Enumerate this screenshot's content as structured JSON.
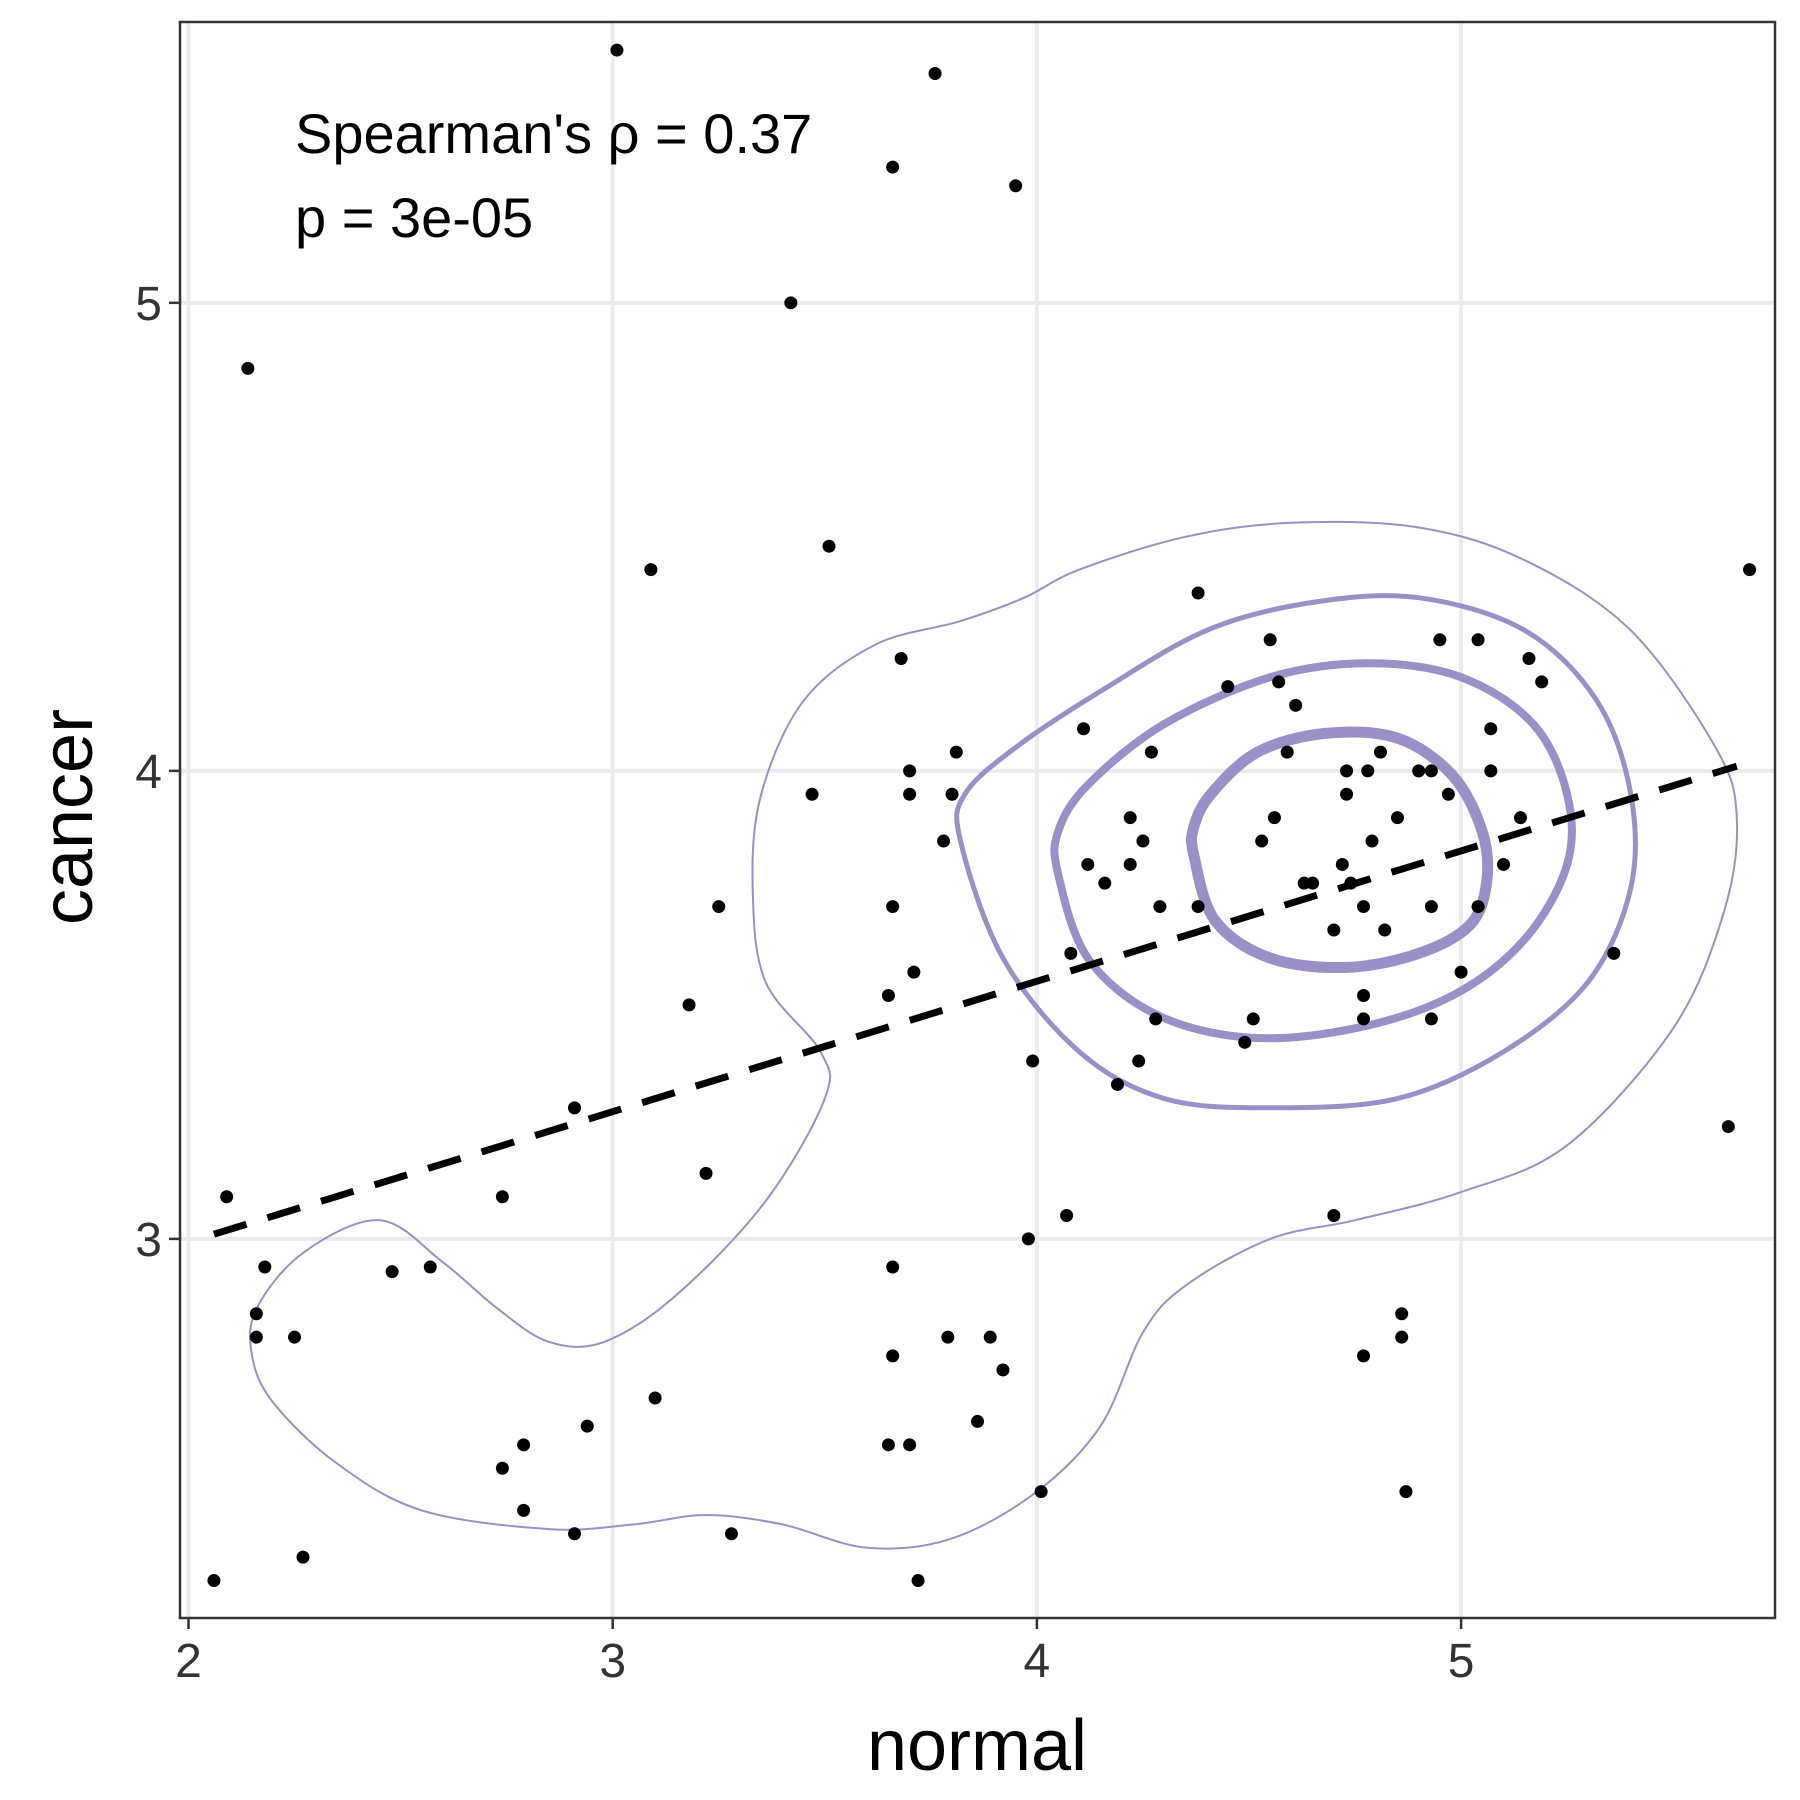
{
  "chart_data": {
    "type": "scatter",
    "title": "",
    "xlabel": "normal",
    "ylabel": "cancer",
    "xlim": [
      1.98,
      5.74
    ],
    "ylim": [
      2.19,
      5.6
    ],
    "x_ticks": [
      {
        "value": 2,
        "label": "2"
      },
      {
        "value": 3,
        "label": "3"
      },
      {
        "value": 4,
        "label": "4"
      },
      {
        "value": 5,
        "label": "5"
      }
    ],
    "y_ticks": [
      {
        "value": 3,
        "label": "3"
      },
      {
        "value": 4,
        "label": "4"
      },
      {
        "value": 5,
        "label": "5"
      }
    ],
    "grid": true,
    "legend": "none",
    "annotations": [
      "Spearman's ρ = 0.37",
      "p = 3e-05"
    ],
    "colors": {
      "points": "#000000",
      "contour": "#9b8fc8",
      "regression": "#000000",
      "grid": "#ebebeb",
      "panel_border": "#333333"
    },
    "regression_line": {
      "style": "dashed",
      "x": [
        2.06,
        5.65
      ],
      "y": [
        3.01,
        4.01
      ]
    },
    "points": [
      [
        2.06,
        2.27
      ],
      [
        2.09,
        3.09
      ],
      [
        2.14,
        4.86
      ],
      [
        2.16,
        2.84
      ],
      [
        2.16,
        2.79
      ],
      [
        2.18,
        2.94
      ],
      [
        2.25,
        2.79
      ],
      [
        2.27,
        2.32
      ],
      [
        2.48,
        2.93
      ],
      [
        2.57,
        2.94
      ],
      [
        2.74,
        3.09
      ],
      [
        2.74,
        2.51
      ],
      [
        2.79,
        2.56
      ],
      [
        2.79,
        2.42
      ],
      [
        2.91,
        2.37
      ],
      [
        2.91,
        3.28
      ],
      [
        2.94,
        2.6
      ],
      [
        3.01,
        5.54
      ],
      [
        3.09,
        4.43
      ],
      [
        3.1,
        2.66
      ],
      [
        3.18,
        3.5
      ],
      [
        3.22,
        3.14
      ],
      [
        3.25,
        3.71
      ],
      [
        3.28,
        2.37
      ],
      [
        3.42,
        5.0
      ],
      [
        3.47,
        3.95
      ],
      [
        3.51,
        4.48
      ],
      [
        3.65,
        3.52
      ],
      [
        3.65,
        2.56
      ],
      [
        3.66,
        3.71
      ],
      [
        3.66,
        5.29
      ],
      [
        3.66,
        2.94
      ],
      [
        3.66,
        2.75
      ],
      [
        3.68,
        4.24
      ],
      [
        3.7,
        4.0
      ],
      [
        3.7,
        3.95
      ],
      [
        3.7,
        2.56
      ],
      [
        3.71,
        3.57
      ],
      [
        3.72,
        2.27
      ],
      [
        3.76,
        5.49
      ],
      [
        3.78,
        3.85
      ],
      [
        3.79,
        2.79
      ],
      [
        3.8,
        3.95
      ],
      [
        3.81,
        4.04
      ],
      [
        3.86,
        2.61
      ],
      [
        3.89,
        2.79
      ],
      [
        3.92,
        2.72
      ],
      [
        3.95,
        5.25
      ],
      [
        3.98,
        3.0
      ],
      [
        3.99,
        3.38
      ],
      [
        4.01,
        2.46
      ],
      [
        4.07,
        3.05
      ],
      [
        4.08,
        3.61
      ],
      [
        4.11,
        4.09
      ],
      [
        4.12,
        3.8
      ],
      [
        4.16,
        3.76
      ],
      [
        4.19,
        3.33
      ],
      [
        4.22,
        3.8
      ],
      [
        4.22,
        3.9
      ],
      [
        4.24,
        3.38
      ],
      [
        4.25,
        3.85
      ],
      [
        4.27,
        4.04
      ],
      [
        4.28,
        3.47
      ],
      [
        4.29,
        3.71
      ],
      [
        4.38,
        3.71
      ],
      [
        4.38,
        4.38
      ],
      [
        4.45,
        4.18
      ],
      [
        4.49,
        3.42
      ],
      [
        4.51,
        3.47
      ],
      [
        4.53,
        3.85
      ],
      [
        4.55,
        4.28
      ],
      [
        4.56,
        3.9
      ],
      [
        4.57,
        4.19
      ],
      [
        4.59,
        4.04
      ],
      [
        4.61,
        4.14
      ],
      [
        4.63,
        3.76
      ],
      [
        4.65,
        3.76
      ],
      [
        4.7,
        3.66
      ],
      [
        4.7,
        3.05
      ],
      [
        4.72,
        3.8
      ],
      [
        4.73,
        3.95
      ],
      [
        4.73,
        4.0
      ],
      [
        4.74,
        3.76
      ],
      [
        4.77,
        3.71
      ],
      [
        4.77,
        2.75
      ],
      [
        4.77,
        3.47
      ],
      [
        4.77,
        3.52
      ],
      [
        4.78,
        4.0
      ],
      [
        4.79,
        3.85
      ],
      [
        4.81,
        4.04
      ],
      [
        4.82,
        3.66
      ],
      [
        4.85,
        3.9
      ],
      [
        4.86,
        2.79
      ],
      [
        4.86,
        2.84
      ],
      [
        4.87,
        2.46
      ],
      [
        4.9,
        4.0
      ],
      [
        4.93,
        3.71
      ],
      [
        4.93,
        3.47
      ],
      [
        4.93,
        4.0
      ],
      [
        4.95,
        4.28
      ],
      [
        4.97,
        3.95
      ],
      [
        5.0,
        3.57
      ],
      [
        5.04,
        4.28
      ],
      [
        5.04,
        3.71
      ],
      [
        5.07,
        4.09
      ],
      [
        5.07,
        4.0
      ],
      [
        5.1,
        3.8
      ],
      [
        5.14,
        3.9
      ],
      [
        5.16,
        4.24
      ],
      [
        5.19,
        4.19
      ],
      [
        5.36,
        3.61
      ],
      [
        5.63,
        3.24
      ],
      [
        5.68,
        4.43
      ]
    ],
    "contours": [
      {
        "level": 1,
        "stroke_width": 2,
        "closed": true,
        "points": [
          [
            2.16,
            2.85
          ],
          [
            2.27,
            2.97
          ],
          [
            2.45,
            3.04
          ],
          [
            2.6,
            2.95
          ],
          [
            2.73,
            2.85
          ],
          [
            2.85,
            2.78
          ],
          [
            2.98,
            2.78
          ],
          [
            3.15,
            2.88
          ],
          [
            3.36,
            3.08
          ],
          [
            3.5,
            3.3
          ],
          [
            3.49,
            3.4
          ],
          [
            3.36,
            3.55
          ],
          [
            3.33,
            3.75
          ],
          [
            3.35,
            3.95
          ],
          [
            3.45,
            4.15
          ],
          [
            3.62,
            4.27
          ],
          [
            3.82,
            4.32
          ],
          [
            3.97,
            4.37
          ],
          [
            4.1,
            4.43
          ],
          [
            4.35,
            4.5
          ],
          [
            4.6,
            4.53
          ],
          [
            4.9,
            4.52
          ],
          [
            5.15,
            4.45
          ],
          [
            5.4,
            4.3
          ],
          [
            5.6,
            4.05
          ],
          [
            5.65,
            3.9
          ],
          [
            5.62,
            3.7
          ],
          [
            5.5,
            3.45
          ],
          [
            5.25,
            3.2
          ],
          [
            5.0,
            3.1
          ],
          [
            4.75,
            3.04
          ],
          [
            4.55,
            3.0
          ],
          [
            4.35,
            2.9
          ],
          [
            4.25,
            2.8
          ],
          [
            4.15,
            2.6
          ],
          [
            4.0,
            2.46
          ],
          [
            3.8,
            2.36
          ],
          [
            3.6,
            2.34
          ],
          [
            3.4,
            2.39
          ],
          [
            3.22,
            2.41
          ],
          [
            3.05,
            2.39
          ],
          [
            2.85,
            2.38
          ],
          [
            2.55,
            2.42
          ],
          [
            2.35,
            2.52
          ],
          [
            2.2,
            2.65
          ],
          [
            2.15,
            2.75
          ]
        ]
      },
      {
        "level": 2,
        "stroke_width": 5,
        "closed": true,
        "points": [
          [
            3.82,
            3.85
          ],
          [
            3.92,
            3.6
          ],
          [
            4.1,
            3.4
          ],
          [
            4.3,
            3.3
          ],
          [
            4.55,
            3.28
          ],
          [
            4.85,
            3.3
          ],
          [
            5.1,
            3.4
          ],
          [
            5.3,
            3.55
          ],
          [
            5.4,
            3.75
          ],
          [
            5.4,
            3.95
          ],
          [
            5.32,
            4.15
          ],
          [
            5.15,
            4.3
          ],
          [
            4.9,
            4.37
          ],
          [
            4.65,
            4.36
          ],
          [
            4.4,
            4.3
          ],
          [
            4.15,
            4.17
          ],
          [
            3.95,
            4.05
          ],
          [
            3.83,
            3.95
          ]
        ]
      },
      {
        "level": 3,
        "stroke_width": 8,
        "closed": true,
        "points": [
          [
            4.05,
            3.78
          ],
          [
            4.12,
            3.6
          ],
          [
            4.28,
            3.48
          ],
          [
            4.5,
            3.43
          ],
          [
            4.75,
            3.45
          ],
          [
            4.98,
            3.52
          ],
          [
            5.15,
            3.64
          ],
          [
            5.25,
            3.8
          ],
          [
            5.25,
            3.95
          ],
          [
            5.17,
            4.1
          ],
          [
            5.0,
            4.2
          ],
          [
            4.78,
            4.23
          ],
          [
            4.55,
            4.2
          ],
          [
            4.3,
            4.1
          ],
          [
            4.12,
            3.97
          ],
          [
            4.05,
            3.87
          ]
        ]
      },
      {
        "level": 4,
        "stroke_width": 11,
        "closed": true,
        "points": [
          [
            4.37,
            3.82
          ],
          [
            4.42,
            3.68
          ],
          [
            4.55,
            3.6
          ],
          [
            4.73,
            3.58
          ],
          [
            4.9,
            3.61
          ],
          [
            5.02,
            3.67
          ],
          [
            5.06,
            3.76
          ],
          [
            5.05,
            3.87
          ],
          [
            4.98,
            3.99
          ],
          [
            4.85,
            4.07
          ],
          [
            4.68,
            4.08
          ],
          [
            4.52,
            4.04
          ],
          [
            4.41,
            3.95
          ],
          [
            4.37,
            3.88
          ]
        ]
      }
    ]
  }
}
